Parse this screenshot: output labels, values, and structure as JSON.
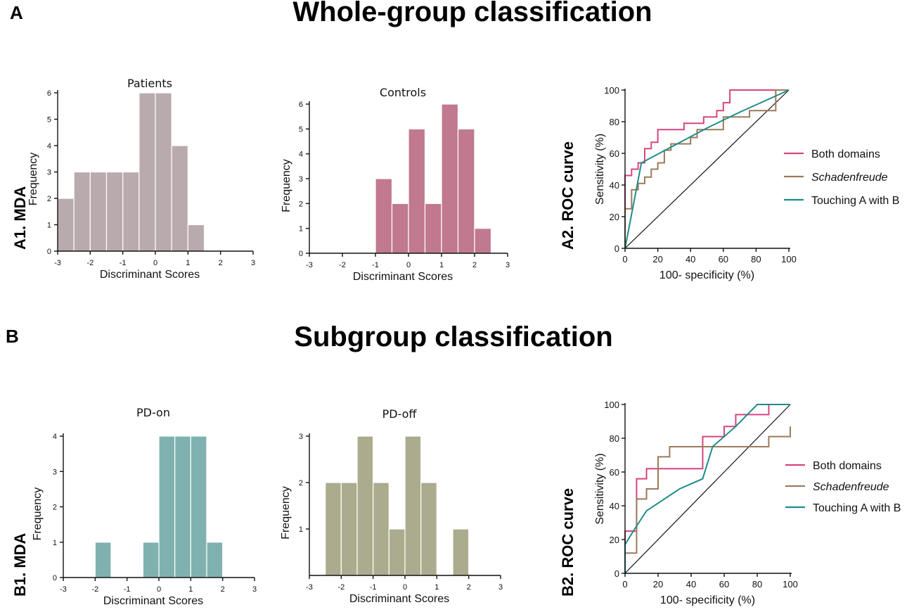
{
  "section_a": {
    "letter": "A",
    "title": "Whole-group classification",
    "mda_label": "A1. MDA",
    "roc_label": "A2. ROC curve"
  },
  "section_b": {
    "letter": "B",
    "title": "Subgroup classification",
    "mda_label": "B1. MDA",
    "roc_label": "B2. ROC curve"
  },
  "colors": {
    "patients": "#b9aaad",
    "controls": "#c0798e",
    "pd_on": "#7fb1b0",
    "pd_off": "#abab8e",
    "both_domains": "#d6457e",
    "schadenfreude": "#9c7a5b",
    "touching": "#1f8c8a"
  },
  "chart_data": [
    {
      "id": "patients",
      "type": "bar",
      "title": "Patients",
      "xlabel": "Discriminant Scores",
      "ylabel": "Frequency",
      "bin_width": 0.5,
      "bin_starts": [
        -3,
        -2.5,
        -2,
        -1.5,
        -1,
        -0.5,
        0,
        0.5,
        1
      ],
      "values": [
        2,
        3,
        3,
        3,
        3,
        6,
        6,
        4,
        1
      ],
      "xlim": [
        -3,
        3
      ],
      "ylim": [
        0,
        6
      ],
      "xticks": [
        -3,
        -2,
        -1,
        0,
        1,
        2,
        3
      ],
      "yticks": [
        0,
        1,
        2,
        3,
        4,
        5,
        6
      ]
    },
    {
      "id": "controls",
      "type": "bar",
      "title": "Controls",
      "xlabel": "Discriminant Scores",
      "ylabel": "Frequency",
      "bin_width": 0.5,
      "bin_starts": [
        -1,
        -0.5,
        0,
        0.5,
        1,
        1.5,
        2
      ],
      "values": [
        3,
        2,
        5,
        2,
        6,
        5,
        1
      ],
      "xlim": [
        -3,
        3
      ],
      "ylim": [
        0,
        6
      ],
      "xticks": [
        -3,
        -2,
        -1,
        0,
        1,
        2,
        3
      ],
      "yticks": [
        0,
        1,
        2,
        3,
        4,
        5,
        6
      ]
    },
    {
      "id": "roc_a",
      "type": "line",
      "xlabel": "100- specificity (%)",
      "ylabel": "Sensitivity (%)",
      "xlim": [
        0,
        100
      ],
      "ylim": [
        0,
        100
      ],
      "xticks": [
        0,
        20,
        40,
        60,
        80,
        100
      ],
      "yticks": [
        0,
        20,
        40,
        60,
        80,
        100
      ],
      "legend": [
        "Both domains",
        "Schadenfreude",
        "Touching A with B"
      ],
      "series": [
        {
          "name": "Both domains",
          "x": [
            0,
            0,
            4,
            4,
            8,
            8,
            12,
            12,
            16,
            16,
            20,
            20,
            36,
            36,
            48,
            48,
            56,
            56,
            60,
            60,
            64,
            64,
            100
          ],
          "y": [
            0,
            46,
            46,
            50,
            50,
            54,
            54,
            63,
            63,
            67,
            67,
            75,
            75,
            79,
            79,
            83,
            83,
            87,
            87,
            92,
            92,
            100,
            100
          ]
        },
        {
          "name": "Schadenfreude",
          "x": [
            0,
            0,
            4,
            4,
            8,
            8,
            12,
            12,
            16,
            16,
            20,
            20,
            24,
            24,
            28,
            28,
            40,
            40,
            44,
            44,
            60,
            60,
            76,
            76,
            92,
            92,
            100
          ],
          "y": [
            0,
            25,
            25,
            37,
            37,
            41,
            41,
            45,
            45,
            50,
            50,
            54,
            54,
            62,
            62,
            66,
            66,
            70,
            70,
            75,
            75,
            83,
            83,
            87,
            87,
            100,
            100
          ]
        },
        {
          "name": "Touching A with B",
          "x": [
            0,
            10,
            30,
            50,
            70,
            100
          ],
          "y": [
            0,
            54,
            65,
            76,
            86,
            100
          ]
        }
      ]
    },
    {
      "id": "pd_on",
      "type": "bar",
      "title": "PD-on",
      "xlabel": "Discriminant Scores",
      "ylabel": "Frequency",
      "bin_width": 0.5,
      "bin_starts": [
        -2,
        -0.5,
        0,
        0.5,
        1,
        1.5
      ],
      "values": [
        1,
        1,
        4,
        4,
        4,
        1
      ],
      "xlim": [
        -3,
        3
      ],
      "ylim": [
        0,
        4
      ],
      "xticks": [
        -3,
        -2,
        -1,
        0,
        1,
        2,
        3
      ],
      "yticks": [
        0,
        1,
        2,
        3,
        4
      ]
    },
    {
      "id": "pd_off",
      "type": "bar",
      "title": "PD-off",
      "xlabel": "Discriminant Scores",
      "ylabel": "Frequency",
      "bin_width": 0.5,
      "bin_starts": [
        -2.5,
        -2,
        -1.5,
        -1,
        -0.5,
        0,
        0.5,
        1.5
      ],
      "values": [
        2,
        2,
        3,
        2,
        1,
        3,
        2,
        1
      ],
      "xlim": [
        -3,
        3
      ],
      "ylim": [
        0,
        3
      ],
      "xticks": [
        -3,
        -2,
        -1,
        0,
        1,
        2,
        3
      ],
      "yticks": [
        1,
        2,
        3
      ]
    },
    {
      "id": "roc_b",
      "type": "line",
      "xlabel": "100- specificity (%)",
      "ylabel": "Sensitivity (%)",
      "xlim": [
        0,
        100
      ],
      "ylim": [
        0,
        100
      ],
      "xticks": [
        0,
        20,
        40,
        60,
        80,
        100
      ],
      "yticks": [
        0,
        20,
        40,
        60,
        80,
        100
      ],
      "legend": [
        "Both domains",
        "Schadenfreude",
        "Touching A with B"
      ],
      "series": [
        {
          "name": "Both domains",
          "x": [
            0,
            0,
            7,
            7,
            13,
            13,
            20,
            20,
            47,
            47,
            60,
            60,
            67,
            67,
            73,
            73,
            87,
            87,
            100
          ],
          "y": [
            0,
            25,
            25,
            56,
            56,
            62,
            62,
            62,
            62,
            81,
            81,
            87,
            87,
            94,
            94,
            94,
            94,
            100,
            100
          ]
        },
        {
          "name": "Schadenfreude",
          "x": [
            0,
            0,
            7,
            7,
            13,
            13,
            20,
            20,
            27,
            27,
            87,
            87,
            100,
            100
          ],
          "y": [
            0,
            12,
            12,
            44,
            44,
            50,
            50,
            69,
            69,
            75,
            75,
            81,
            81,
            87
          ]
        },
        {
          "name": "Touching A with B",
          "x": [
            0,
            0,
            5,
            13,
            33,
            47,
            53,
            67,
            80,
            100
          ],
          "y": [
            0,
            17,
            25,
            37,
            50,
            56,
            75,
            87,
            100,
            100
          ]
        }
      ]
    }
  ]
}
